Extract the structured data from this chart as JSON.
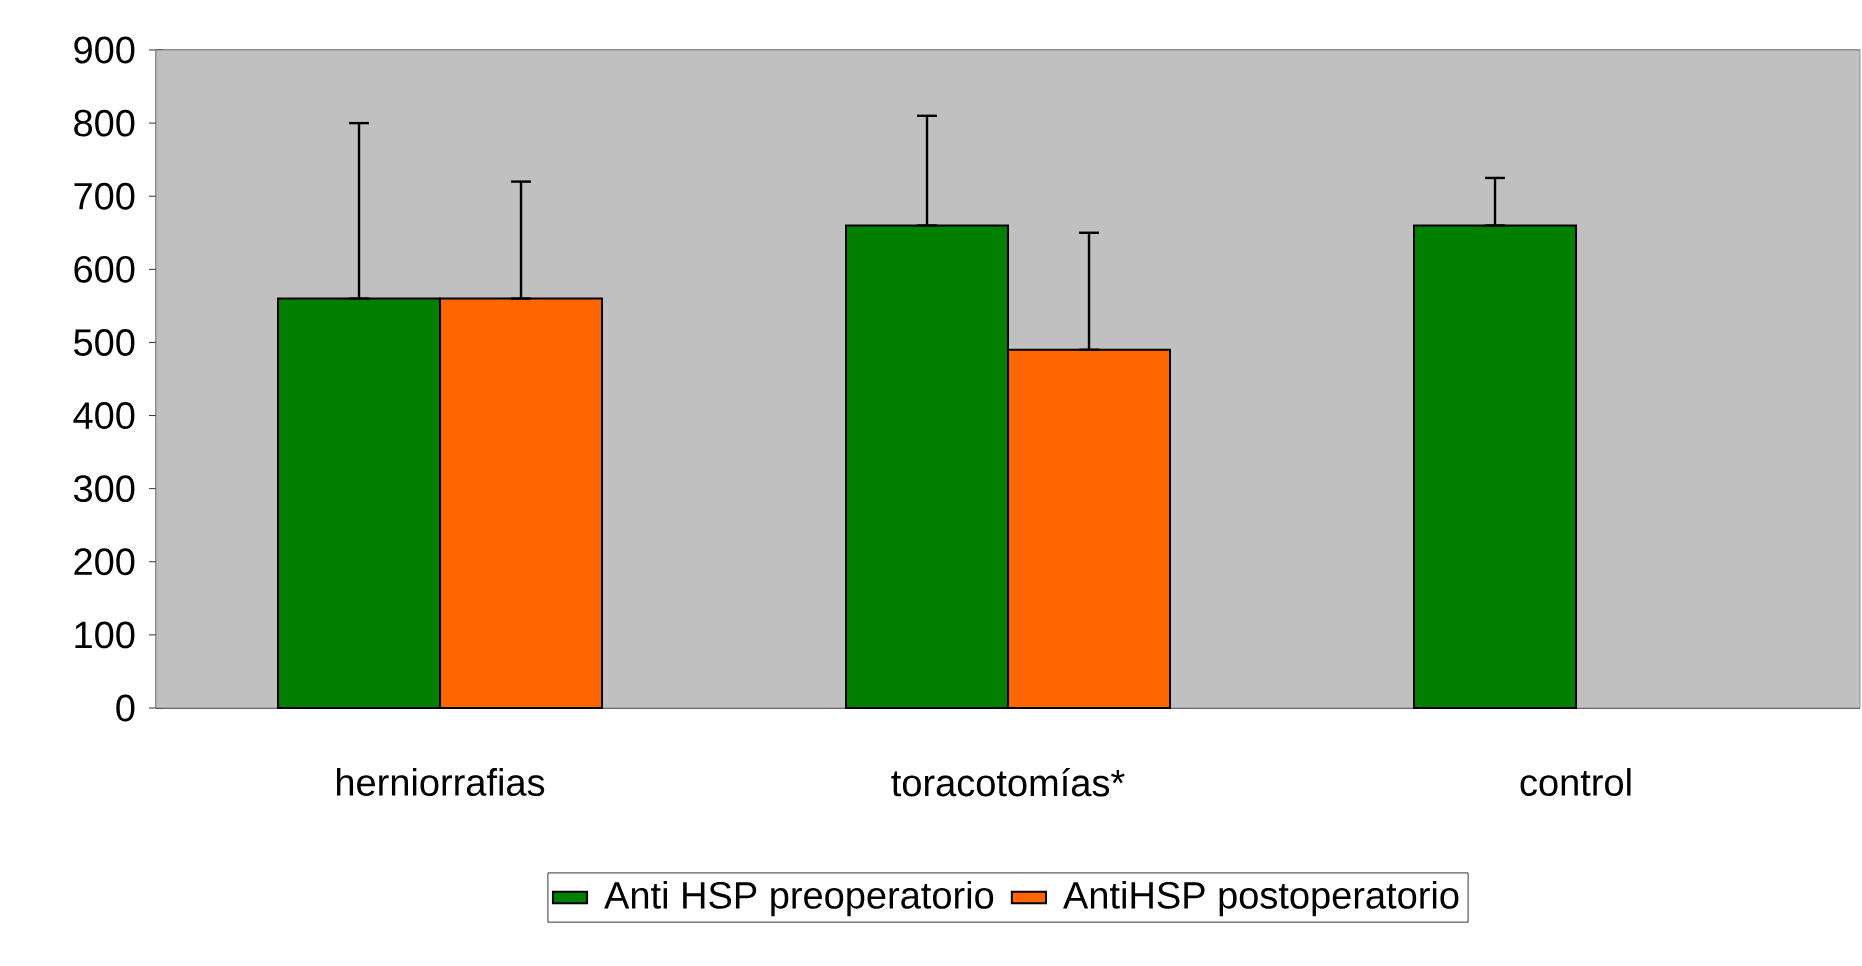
{
  "chart_data": {
    "type": "bar",
    "categories": [
      "herniorrafias",
      "toracotomías*",
      "control"
    ],
    "series": [
      {
        "name": "Anti HSP preoperatorio",
        "color": "#007f00",
        "values": [
          560,
          660,
          660
        ],
        "errors": [
          [
            560,
            800
          ],
          [
            660,
            810
          ],
          [
            660,
            725
          ]
        ]
      },
      {
        "name": "AntiHSP postoperatorio",
        "color": "#ff6600",
        "values": [
          560,
          490,
          null
        ],
        "errors": [
          [
            560,
            720
          ],
          [
            490,
            650
          ],
          null
        ]
      }
    ],
    "ylim": [
      0,
      900
    ],
    "yticks": [
      0,
      100,
      200,
      300,
      400,
      500,
      600,
      700,
      800,
      900
    ],
    "grid": "y",
    "legend": "bottom"
  }
}
